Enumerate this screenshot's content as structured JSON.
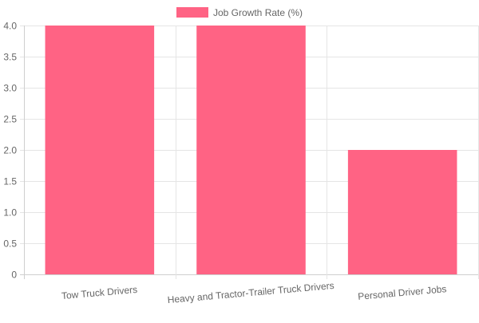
{
  "chart_data": {
    "type": "bar",
    "categories": [
      "Tow Truck Drivers",
      "Heavy and Tractor-Trailer Truck Drivers",
      "Personal Driver Jobs"
    ],
    "series": [
      {
        "name": "Job Growth Rate (%)",
        "values": [
          4.0,
          4.0,
          2.0
        ],
        "color": "#ff6384"
      }
    ],
    "yticks": [
      "0",
      "0.5",
      "1.0",
      "1.5",
      "2.0",
      "2.5",
      "3.0",
      "3.5",
      "4.0"
    ],
    "ylim": [
      0,
      4.0
    ],
    "grid": true,
    "legend": "top-center"
  }
}
